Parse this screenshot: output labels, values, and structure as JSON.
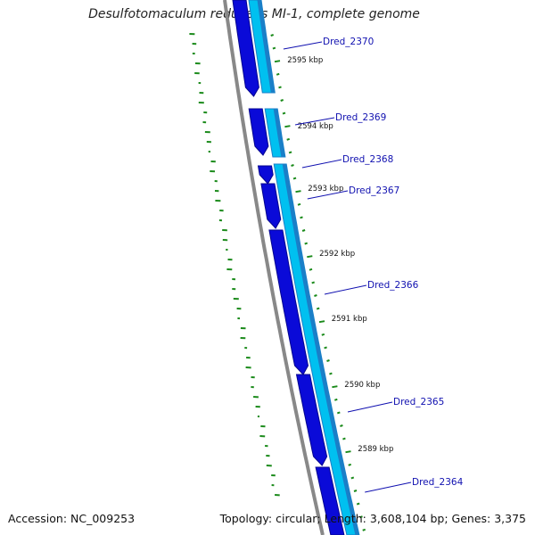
{
  "title": "Desulfotomaculum reducens MI-1, complete genome",
  "footer": {
    "accession": "Accession: NC_009253",
    "summary": "Topology: circular; Length: 3,608,104 bp; Genes: 3,375"
  },
  "colors": {
    "forward_cds": "#00c0f0",
    "forward_cds_dark": "#1a7fc8",
    "reverse_cds": "#0a0ad8",
    "reverse_cds_dark": "#050590",
    "backbone": "#888888",
    "tick": "#1a8a1a",
    "gene_label": "#1010b0"
  },
  "kbp_labels": [
    "2595 kbp",
    "2594 kbp",
    "2593 kbp",
    "2592 kbp",
    "2591 kbp",
    "2590 kbp",
    "2589 kbp"
  ],
  "genes": [
    "Dred_2370",
    "Dred_2369",
    "Dred_2368",
    "Dred_2367",
    "Dred_2366",
    "Dred_2365",
    "Dred_2364"
  ]
}
